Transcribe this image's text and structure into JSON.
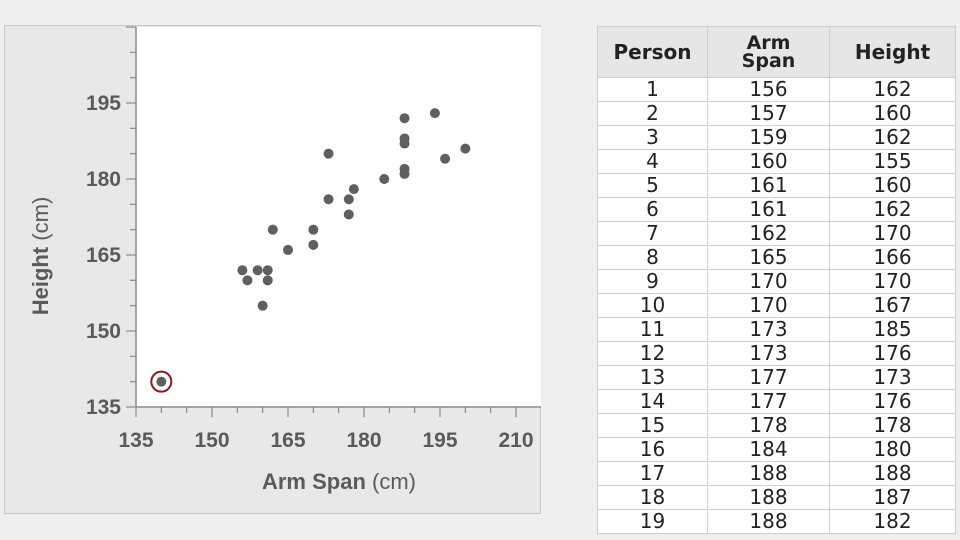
{
  "chart_data": {
    "type": "scatter",
    "xlabel": "Arm Span",
    "xlabel_unit": "(cm)",
    "ylabel": "Height",
    "ylabel_unit": "(cm)",
    "xlim": [
      135,
      210
    ],
    "ylim": [
      135,
      210
    ],
    "x_ticks": [
      "135",
      "150",
      "165",
      "180",
      "195",
      "210"
    ],
    "y_ticks": [
      "135",
      "150",
      "165",
      "180",
      "195"
    ],
    "highlighted_point": {
      "x": 140,
      "y": 140
    },
    "points": [
      {
        "x": 156,
        "y": 162
      },
      {
        "x": 157,
        "y": 160
      },
      {
        "x": 159,
        "y": 162
      },
      {
        "x": 160,
        "y": 155
      },
      {
        "x": 161,
        "y": 160
      },
      {
        "x": 161,
        "y": 162
      },
      {
        "x": 162,
        "y": 170
      },
      {
        "x": 165,
        "y": 166
      },
      {
        "x": 170,
        "y": 170
      },
      {
        "x": 170,
        "y": 167
      },
      {
        "x": 173,
        "y": 185
      },
      {
        "x": 173,
        "y": 176
      },
      {
        "x": 177,
        "y": 173
      },
      {
        "x": 177,
        "y": 176
      },
      {
        "x": 178,
        "y": 178
      },
      {
        "x": 184,
        "y": 180
      },
      {
        "x": 188,
        "y": 188
      },
      {
        "x": 188,
        "y": 187
      },
      {
        "x": 188,
        "y": 182
      },
      {
        "x": 188,
        "y": 192
      },
      {
        "x": 188,
        "y": 181
      },
      {
        "x": 194,
        "y": 193
      },
      {
        "x": 196,
        "y": 184
      },
      {
        "x": 200,
        "y": 186
      },
      {
        "x": 140,
        "y": 140
      }
    ],
    "colors": {
      "point": "#5f5f5f",
      "highlight_ring": "#8b1a1a",
      "axis": "#8a8a8a",
      "text": "#5a5a5a"
    }
  },
  "table": {
    "headers": {
      "person": "Person",
      "arm_line1": "Arm",
      "arm_line2": "Span",
      "height": "Height"
    },
    "rows": [
      [
        "1",
        "156",
        "162"
      ],
      [
        "2",
        "157",
        "160"
      ],
      [
        "3",
        "159",
        "162"
      ],
      [
        "4",
        "160",
        "155"
      ],
      [
        "5",
        "161",
        "160"
      ],
      [
        "6",
        "161",
        "162"
      ],
      [
        "7",
        "162",
        "170"
      ],
      [
        "8",
        "165",
        "166"
      ],
      [
        "9",
        "170",
        "170"
      ],
      [
        "10",
        "170",
        "167"
      ],
      [
        "11",
        "173",
        "185"
      ],
      [
        "12",
        "173",
        "176"
      ],
      [
        "13",
        "177",
        "173"
      ],
      [
        "14",
        "177",
        "176"
      ],
      [
        "15",
        "178",
        "178"
      ],
      [
        "16",
        "184",
        "180"
      ],
      [
        "17",
        "188",
        "188"
      ],
      [
        "18",
        "188",
        "187"
      ],
      [
        "19",
        "188",
        "182"
      ]
    ]
  }
}
